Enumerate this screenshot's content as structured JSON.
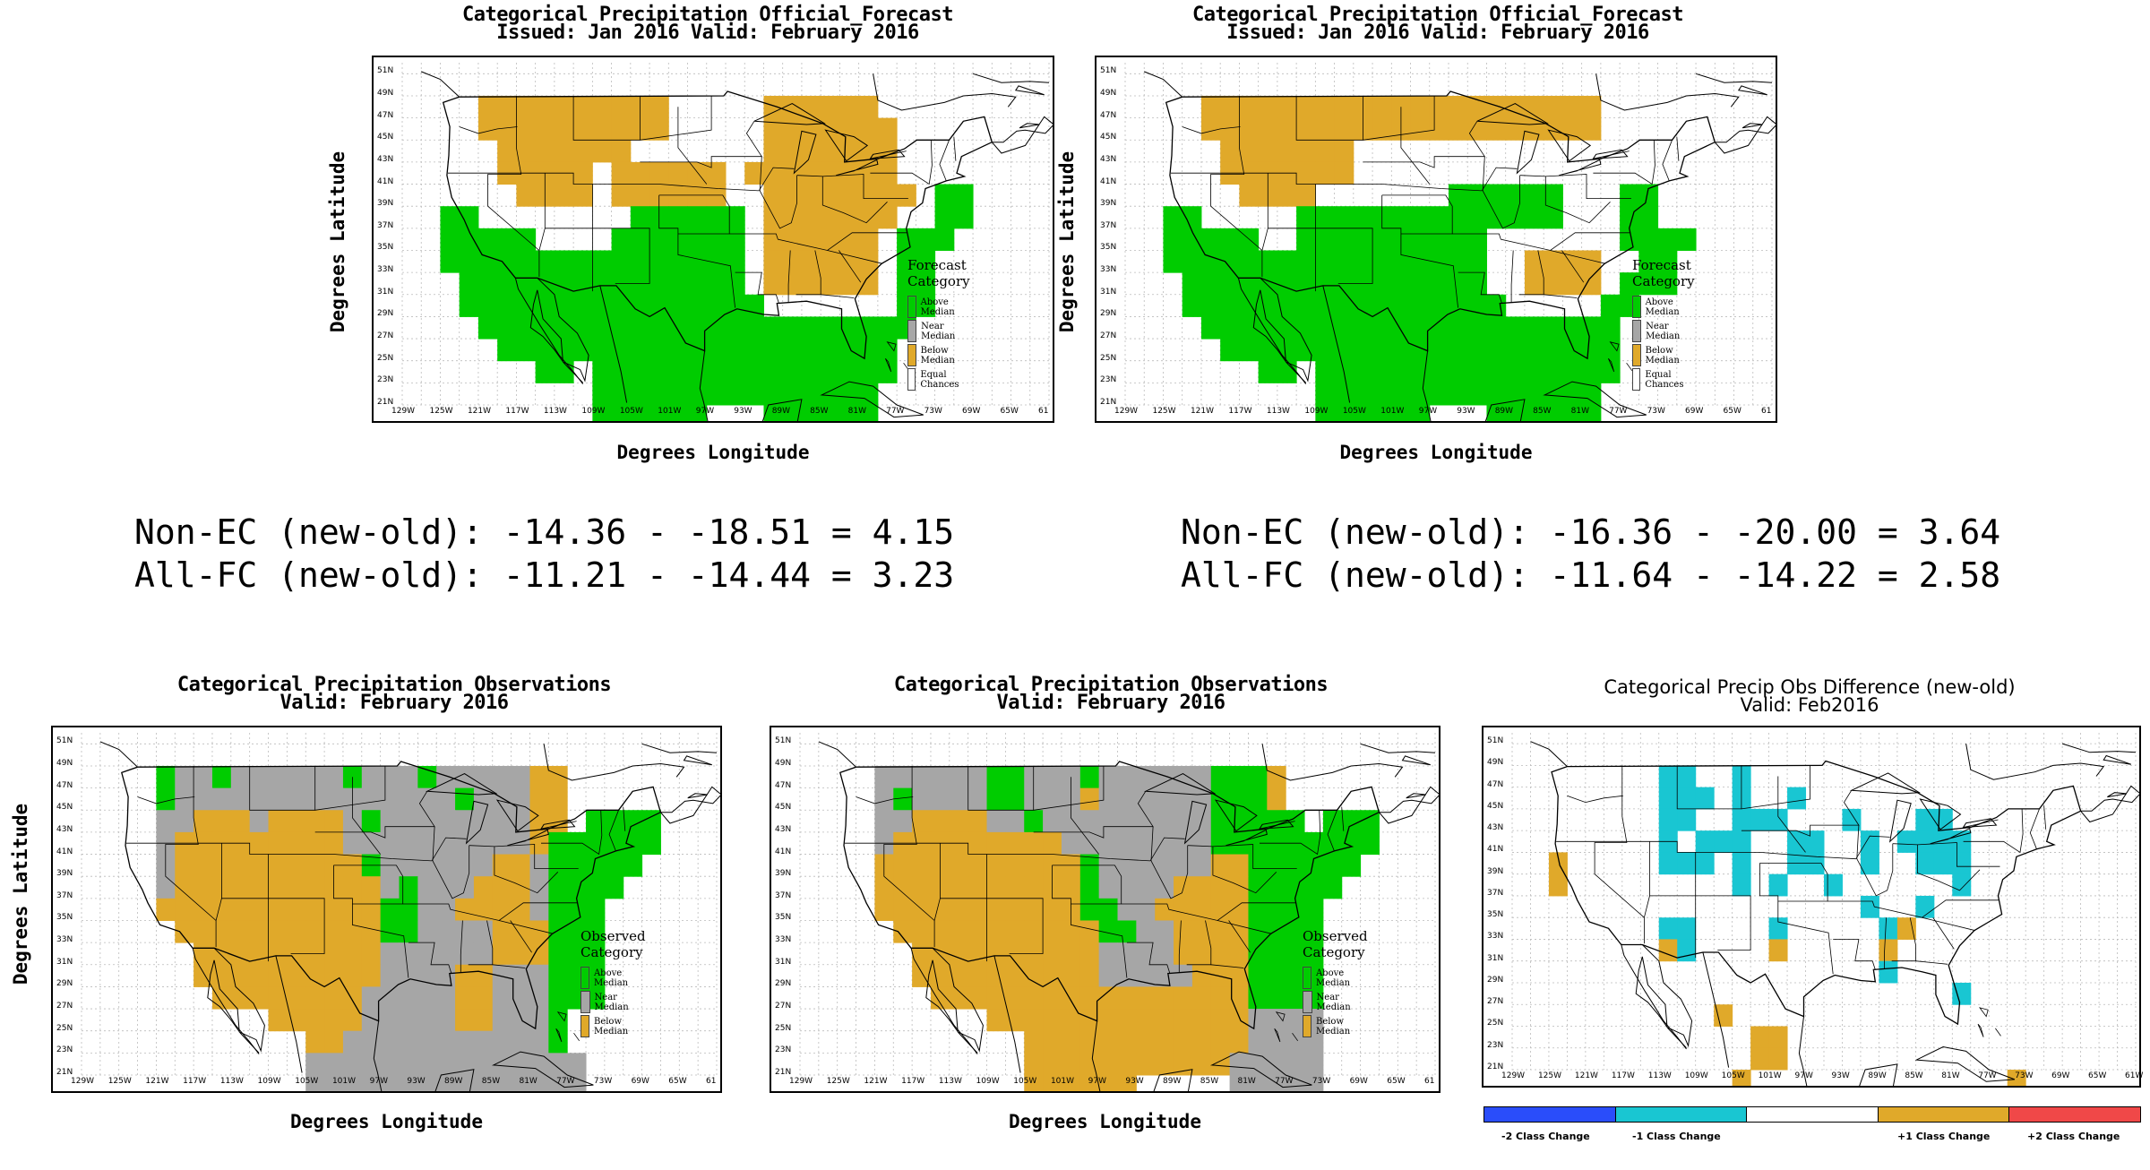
{
  "colors": {
    "above": "#00cc00",
    "near": "#a6a6a6",
    "below": "#e0a92a",
    "equal": "#ffffff",
    "cyan": "#19c6d2",
    "blue": "#2a4dfa",
    "red": "#f04848"
  },
  "lat_ticks": [
    "51N",
    "49N",
    "47N",
    "45N",
    "43N",
    "41N",
    "39N",
    "37N",
    "35N",
    "33N",
    "31N",
    "29N",
    "27N",
    "25N",
    "23N",
    "21N"
  ],
  "lon_ticks": [
    "129W",
    "125W",
    "121W",
    "117W",
    "113W",
    "109W",
    "105W",
    "101W",
    "97W",
    "93W",
    "89W",
    "85W",
    "81W",
    "77W",
    "73W",
    "69W",
    "65W",
    "61"
  ],
  "lon_ticks_diff": [
    "129W",
    "125W",
    "121W",
    "117W",
    "113W",
    "109W",
    "105W",
    "101W",
    "97W",
    "93W",
    "89W",
    "85W",
    "81W",
    "77W",
    "73W",
    "69W",
    "65W",
    "61W"
  ],
  "axis": {
    "ylabel": "Degrees Latitude",
    "xlabel": "Degrees Longitude"
  },
  "forecast_left": {
    "title1": "Categorical Precipitation Official_Forecast",
    "title2": "Issued: Jan 2016 Valid: February 2016",
    "legend_title": "Forecast Category",
    "legend": [
      "Above Median",
      "Near Median",
      "Below Median",
      "Equal Chances"
    ]
  },
  "forecast_right": {
    "title1": "Categorical Precipitation Official_Forecast",
    "title2": "Issued: Jan 2016 Valid: February 2016",
    "legend_title": "Forecast Category",
    "legend": [
      "Above Median",
      "Near Median",
      "Below Median",
      "Equal Chances"
    ]
  },
  "stats_left": {
    "line1": "Non-EC (new-old): -14.36 - -18.51 = 4.15",
    "line2": "All-FC (new-old): -11.21 - -14.44 = 3.23"
  },
  "stats_right": {
    "line1": "Non-EC (new-old): -16.36 - -20.00 = 3.64",
    "line2": "All-FC (new-old): -11.64 - -14.22 = 2.58"
  },
  "obs_left": {
    "title1": "Categorical Precipitation Observations",
    "title2": "Valid: February 2016",
    "legend_title": "Observed Category",
    "legend": [
      "Above Median",
      "Near Median",
      "Below Median"
    ]
  },
  "obs_mid": {
    "title1": "Categorical Precipitation Observations",
    "title2": "Valid: February 2016",
    "legend_title": "Observed Category",
    "legend": [
      "Above Median",
      "Near Median",
      "Below Median"
    ]
  },
  "diff": {
    "title1": "Categorical Precip Obs Difference (new-old)",
    "title2": "Valid: Feb2016",
    "colorbar": [
      "-2 Class Change",
      "-1 Class Change",
      "+1 Class Change",
      "+2 Class Change"
    ]
  },
  "grids": {
    "fc_left": [
      "..BBBBBBBBBB.....BBBBBB......",
      "..BBBBBBBBBB.....BBBBBBB.....",
      "...BBBBBBB.......BBBBBBB.....",
      "...BBBBB.BBBBBB.BBBBBBBB.....",
      "....BBBB.BBBBBB..BBBBBBBB.AA.",
      "AA........AAAAAA.BBBBBBB..AA.",
      "AAAAA....AAAAAAA.BBBBBB.AAA..",
      "AAAAAAAAAAAAAAAA.BBBBBB.AA...",
      ".AAAAAAAAAAAAAAA.BBBBBB.AA...",
      ".AAAAAAAAAAAAAAAA.......AA...",
      "..AAAAAAAAAAAAAAAAAAAAAAA....",
      "...AAAAAAAAAAAAAAAAAAAAA.....",
      ".....AA.AAAAAAAAAAAAAAAA.....",
      "........AAAAAAAAAAAAAAA......",
      "........AAAAAA...AAAAAA......",
      "...........AAAA......AA......",
      "...........AAA.......AA......",
      "...........AA........AA......"
    ],
    "fc_right": [
      "..BBBBBBBBBBBBBBBBBBBBB......",
      "..BBBBBBBBBBBBBBBBBBBBB......",
      "...BBBBBBB...................",
      "...BBBBBBB...................",
      "....BBBB.......AAAAAA...AA...",
      "AA.....AAAAAAAAAAAAAA...AA...",
      "AAAAA..AAAAAAAAAA.......AAAA.",
      "AAAAAAAAAAAAAAAAA..BBBB..AA..",
      ".AAAAAAAAAAAAAAAA..BBBB.AAA..",
      ".AAAAAAAAAAAAAAAAA.....AA....",
      "..AAAAAAAAAAAAAAAAAAAAAA.....",
      "...AAAAAAAAAAAAAAAAAAAAA.....",
      ".....AA.AAAAAAAAAAAAAAAA.....",
      "........AAAAAAAAAAAAAAA......",
      "........AAAAAA...AAAAAA......",
      "...........AAAA......AA......",
      "...........AAA.......AA......",
      "...........AA........AA......"
    ],
    "obs_left": [
      "..ANNANNNNNNANNNANNNNNBB.....",
      "..ANNNNNNNNNNNNNNNANNNBB.....",
      "..NNBBBNBBBBNANNNNNNNNBB.AAAA",
      "..NBBBBBBBBBNNNNNNNNNNBAAAAAA",
      "..NBBBBBBBBBBANNNNNNBBNAAAAA.",
      "..NBBBBBBBBBBBNANNNBBBNAAAA..",
      "..BBBBBBBBBBBBAANNBBBBNAAA...",
      "...BBBBBBBBBBBAANNNNBBBAAA...",
      "....BBBBBBBBBBNNNNNNBBBAAA...",
      "....BBBBBBBBBBNNNNBBNNNAAA...",
      ".....BBBBBBBBNNNNNBBNNNAAA...",
      "........BBBBBNNNNNBBNNNA.....",
      "..........BBNNNNNNNNNNNA.....",
      "..........NNNNNNNNNNNNNNN....",
      "..........NNNNNNNNNNNNNNN....",
      "..........NNNNN.......NNN....",
      "............NN........AA.....",
      ".............B........AA....."
    ],
    "obs_mid": [
      "..NNNNNNAANNNANNNNNNAAAB.....",
      "..NANNNNAANNNBNNNNNNAAAB.....",
      "..NNBBBBNNANNNNNNNNNAAAAA.AAA",
      "..NBBBBBBBBBNNNNNNNNAAAAAAAAA",
      "..BBBBBBBBBBBANNNNNNBBAAAAAA.",
      "..BBBBBBBBBBBANNNNBBBBAAAAA..",
      "..BBBBBBBBBBBAANNBBBBBAAAA...",
      "...BBBBBBBBBBBAANNBBBBAAAA...",
      "....BBBBBBBBBBNNNNBBBBAAAA...",
      "....BBBBBBBBBBNNNNNBBBAAAA...",
      ".....BBBBBBBBBBBBBBBBBAAAA...",
      "........BBBBBBBBBBBBBBNNNN...",
      "..........BBBBBBBBBBBBNNNN...",
      "..........BBBBBBBBBBBNNNNN...",
      "..........BBBBBB.....NNNNN...",
      "............BB........AA.....",
      "............BB........AA.....",
      ".............B........AA....."
    ],
    "diff": [
      "......CC..C..................",
      "......CCC.C..C...............",
      "......CC..CCC...C...CC.......",
      "......C.CCC..CC..C.CCCC......",
      "B.....CCC.C..CC..C..CCC......",
      "B.........C.C..C......C......",
      ".................C..C........",
      "......CC....C.....CB.........",
      "......BC....B.....B..........",
      "..................C..........",
      "......................C......",
      ".........B...................",
      "...........BB................",
      "...........BB................",
      "..........B..............B...",
      ".................BB...BBB.B..",
      "...........B.......B.........",
      "...........B.......B........."
    ]
  }
}
